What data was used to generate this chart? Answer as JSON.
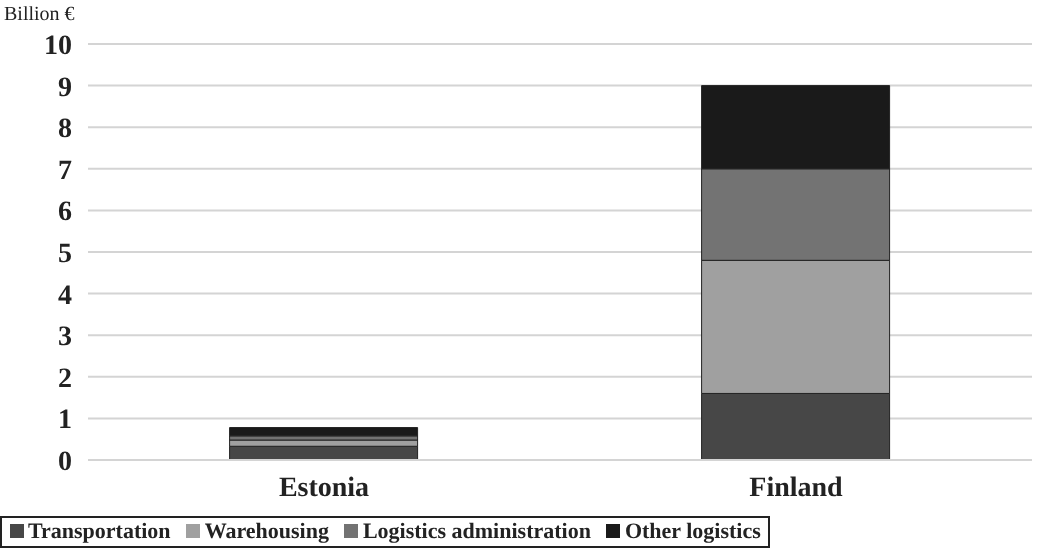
{
  "chart_data": {
    "type": "bar",
    "ylabel": "Billion €",
    "categories": [
      "Estonia",
      "Finland"
    ],
    "stacked": true,
    "series": [
      {
        "name": "Transportation",
        "color": "#474747",
        "values": [
          0.33,
          1.6
        ]
      },
      {
        "name": "Warehousing",
        "color": "#a0a0a0",
        "values": [
          0.15,
          3.2
        ]
      },
      {
        "name": "Logistics administration",
        "color": "#737373",
        "values": [
          0.1,
          2.2
        ]
      },
      {
        "name": "Other logistics",
        "color": "#1a1a1a",
        "values": [
          0.2,
          2.0
        ]
      }
    ],
    "ylim": [
      0,
      10
    ],
    "yticks": [
      0,
      1,
      2,
      3,
      4,
      5,
      6,
      7,
      8,
      9,
      10
    ],
    "grid": "y",
    "legend": "bottom"
  }
}
